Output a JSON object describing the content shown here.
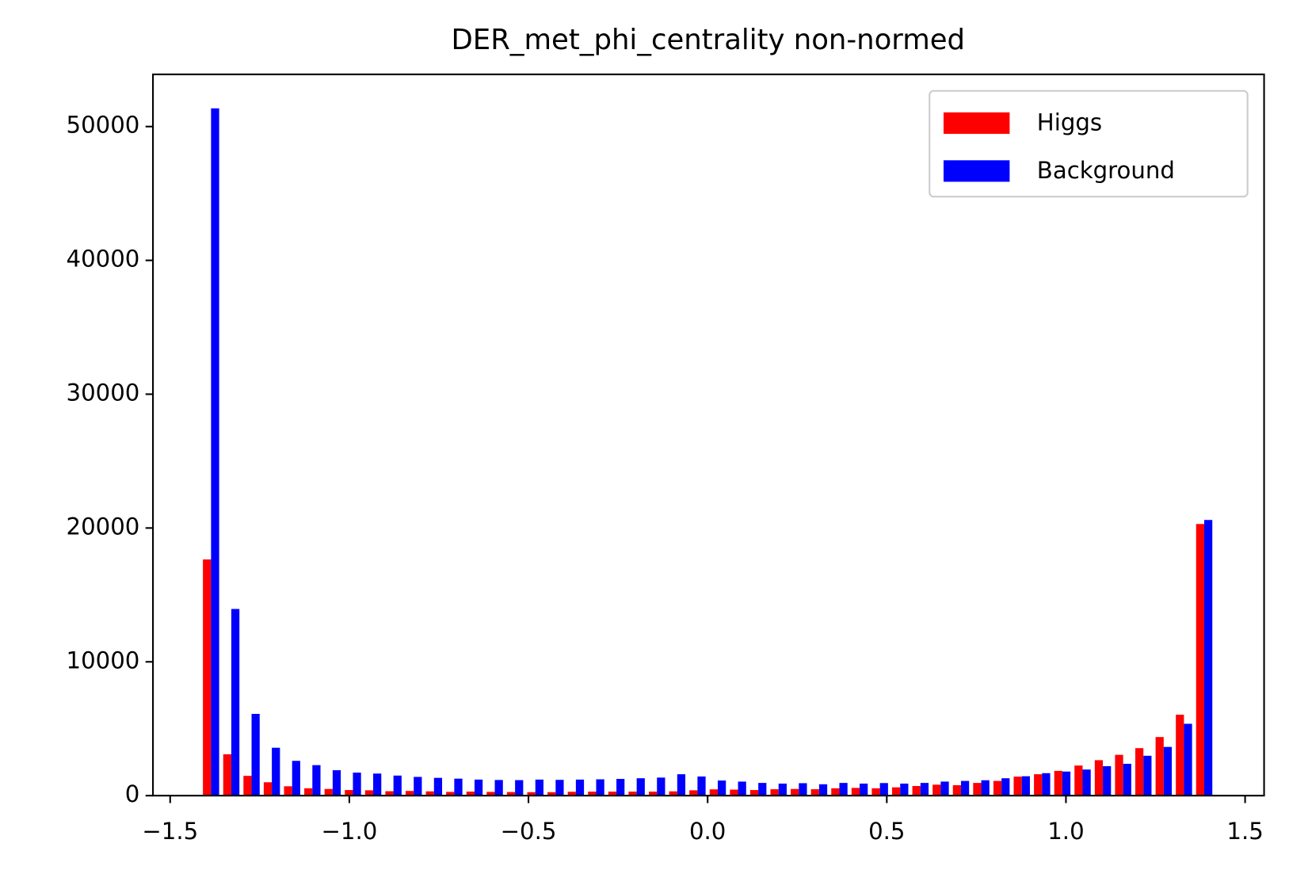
{
  "chart_data": {
    "type": "histogram",
    "title": "DER_met_phi_centrality non-normed",
    "bins": [
      -1.4142,
      -1.3576,
      -1.3011,
      -1.2445,
      -1.1879,
      -1.1314,
      -1.0748,
      -1.0182,
      -0.9617,
      -0.9051,
      -0.8485,
      -0.792,
      -0.7354,
      -0.6788,
      -0.6223,
      -0.5657,
      -0.5091,
      -0.4525,
      -0.396,
      -0.3394,
      -0.2828,
      -0.2263,
      -0.1697,
      -0.1131,
      -0.0566,
      0,
      0.0566,
      0.1131,
      0.1697,
      0.2263,
      0.2828,
      0.3394,
      0.396,
      0.4525,
      0.5091,
      0.5657,
      0.6223,
      0.6788,
      0.7354,
      0.792,
      0.8485,
      0.9051,
      0.9617,
      1.0182,
      1.0748,
      1.1314,
      1.1879,
      1.2445,
      1.3011,
      1.3576,
      1.4142
    ],
    "series": [
      {
        "name": "Higgs",
        "color": "#ff0000",
        "values": [
          17650,
          3090,
          1480,
          1000,
          700,
          550,
          500,
          420,
          400,
          330,
          350,
          320,
          280,
          300,
          280,
          270,
          260,
          260,
          290,
          300,
          300,
          300,
          300,
          320,
          400,
          470,
          450,
          420,
          480,
          500,
          480,
          550,
          580,
          550,
          620,
          720,
          820,
          780,
          950,
          1100,
          1420,
          1600,
          1850,
          2250,
          2650,
          3050,
          3550,
          4380,
          6050,
          20300
        ]
      },
      {
        "name": "Background",
        "color": "#0000ff",
        "values": [
          51360,
          13950,
          6110,
          3580,
          2600,
          2280,
          1900,
          1720,
          1650,
          1500,
          1400,
          1330,
          1270,
          1200,
          1170,
          1160,
          1200,
          1180,
          1200,
          1220,
          1250,
          1300,
          1350,
          1600,
          1430,
          1130,
          1050,
          950,
          900,
          930,
          850,
          950,
          900,
          940,
          900,
          950,
          1050,
          1100,
          1150,
          1300,
          1450,
          1680,
          1800,
          1950,
          2200,
          2380,
          2980,
          3640,
          5370,
          20600
        ]
      }
    ],
    "xlim": [
      -1.548,
      1.553
    ],
    "ylim": [
      0,
      53900
    ],
    "xticks": [
      {
        "value": -1.5,
        "label": "−1.5"
      },
      {
        "value": -1.0,
        "label": "−1.0"
      },
      {
        "value": -0.5,
        "label": "−0.5"
      },
      {
        "value": 0,
        "label": "0.0"
      },
      0.5,
      {
        "value": 1.0,
        "label": "1.0"
      },
      1.5
    ],
    "yticks": [
      0,
      10000,
      20000,
      30000,
      40000,
      50000
    ],
    "grid": false,
    "legend": "upper right"
  }
}
